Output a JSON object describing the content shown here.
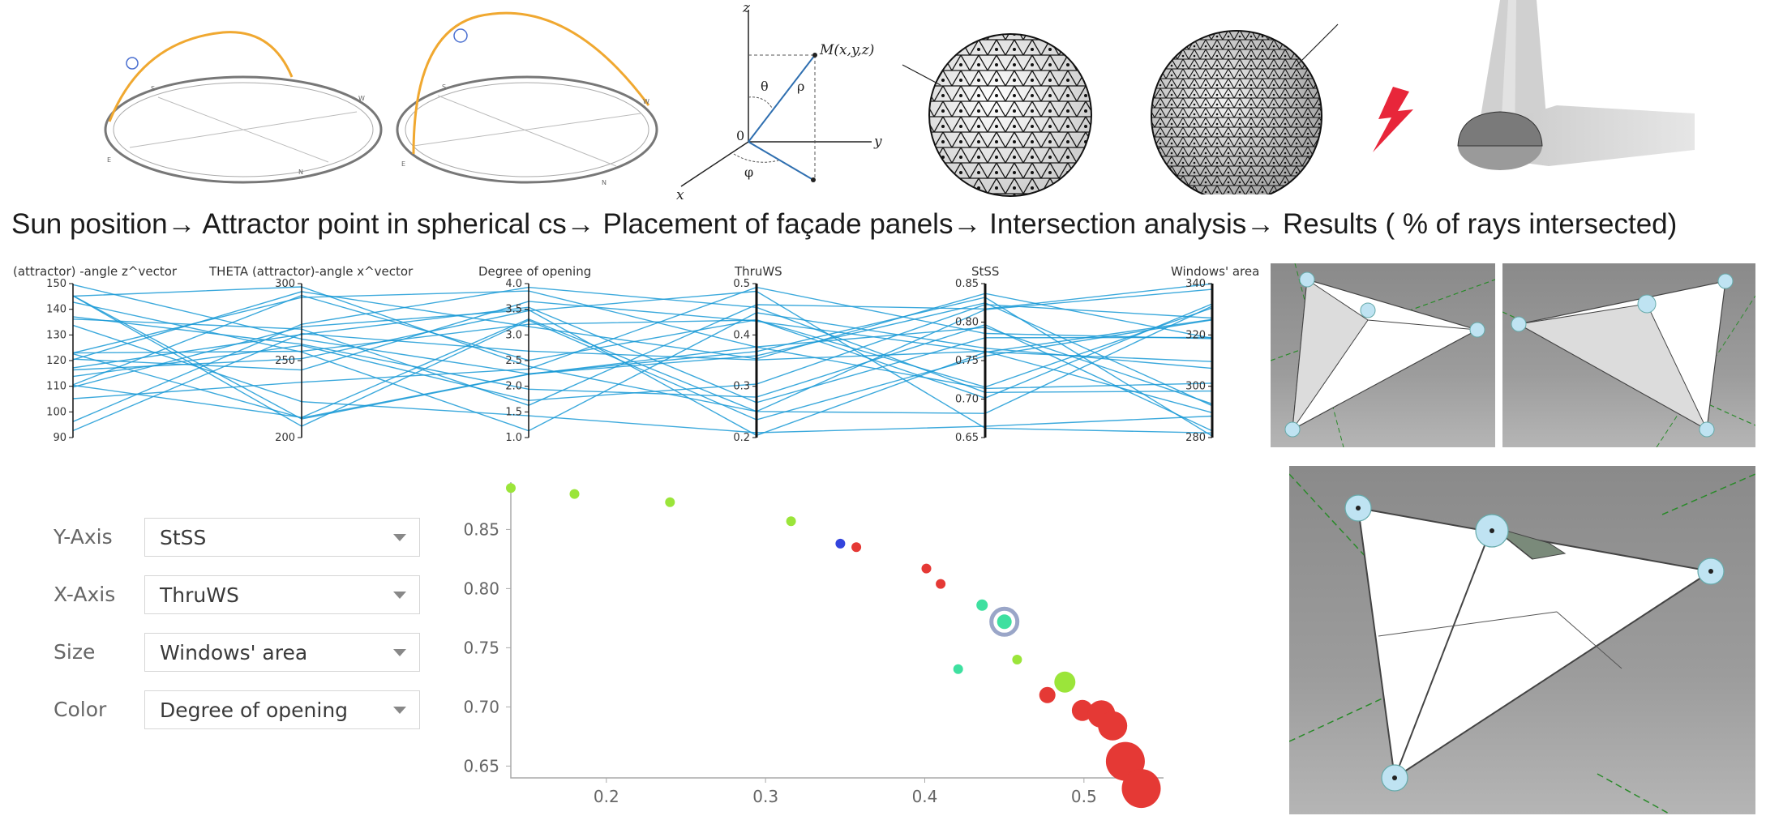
{
  "flow_caption": "Sun position→ Attractor point in spherical cs→ Placement of façade panels→ Intersection analysis→ Results ( % of rays intersected)",
  "sphere_diagram": {
    "axis_z": "z",
    "axis_y": "y",
    "axis_x": "x",
    "origin": "0",
    "point": "M(x,y,z)",
    "theta": "θ",
    "rho": "ρ",
    "phi": "φ"
  },
  "parallel_coords": {
    "axes": [
      {
        "label": "(attractor) -angle z^vector",
        "ticks": [
          "150",
          "140",
          "130",
          "120",
          "110",
          "100",
          "90"
        ]
      },
      {
        "label": "THETA (attractor)-angle x^vector",
        "ticks": [
          "300",
          "250",
          "200"
        ]
      },
      {
        "label": "Degree of opening",
        "ticks": [
          "4.0",
          "3.5",
          "3.0",
          "2.5",
          "2.0",
          "1.5",
          "1.0"
        ]
      },
      {
        "label": "ThruWS",
        "ticks": [
          "0.5",
          "0.4",
          "0.3",
          "0.2"
        ]
      },
      {
        "label": "StSS",
        "ticks": [
          "0.85",
          "0.80",
          "0.75",
          "0.70",
          "0.65"
        ]
      },
      {
        "label": "Windows' area",
        "ticks": [
          "340",
          "320",
          "300",
          "280"
        ]
      }
    ]
  },
  "controls": {
    "y_axis": {
      "label": "Y-Axis",
      "value": "StSS"
    },
    "x_axis": {
      "label": "X-Axis",
      "value": "ThruWS"
    },
    "size": {
      "label": "Size",
      "value": "Windows' area"
    },
    "color": {
      "label": "Color",
      "value": "Degree of opening"
    }
  },
  "colors": {
    "line": "#1a9ad6",
    "green": "#9be53a",
    "red": "#e53935",
    "teal": "#3ee0a0",
    "blue": "#3344dd",
    "sun_arc": "#f0a830"
  },
  "chart_data": {
    "type": "scatter",
    "xlabel": "",
    "ylabel": "",
    "xlim": [
      0.14,
      0.55
    ],
    "ylim": [
      0.64,
      0.89
    ],
    "xticks": [
      "0.2",
      "0.3",
      "0.4",
      "0.5"
    ],
    "yticks": [
      "0.85",
      "0.80",
      "0.75",
      "0.70",
      "0.65"
    ],
    "points": [
      {
        "x": 0.14,
        "y": 0.885,
        "c": "green",
        "s": 6
      },
      {
        "x": 0.18,
        "y": 0.88,
        "c": "green",
        "s": 6
      },
      {
        "x": 0.24,
        "y": 0.873,
        "c": "green",
        "s": 6
      },
      {
        "x": 0.316,
        "y": 0.857,
        "c": "green",
        "s": 6
      },
      {
        "x": 0.347,
        "y": 0.838,
        "c": "blue",
        "s": 6
      },
      {
        "x": 0.357,
        "y": 0.835,
        "c": "red",
        "s": 6
      },
      {
        "x": 0.401,
        "y": 0.817,
        "c": "red",
        "s": 6
      },
      {
        "x": 0.41,
        "y": 0.804,
        "c": "red",
        "s": 6
      },
      {
        "x": 0.436,
        "y": 0.786,
        "c": "teal",
        "s": 7
      },
      {
        "x": 0.45,
        "y": 0.772,
        "c": "teal",
        "s": 9,
        "sel": true
      },
      {
        "x": 0.421,
        "y": 0.732,
        "c": "teal",
        "s": 6
      },
      {
        "x": 0.458,
        "y": 0.74,
        "c": "green",
        "s": 6
      },
      {
        "x": 0.488,
        "y": 0.721,
        "c": "green",
        "s": 13
      },
      {
        "x": 0.477,
        "y": 0.71,
        "c": "red",
        "s": 10
      },
      {
        "x": 0.499,
        "y": 0.697,
        "c": "red",
        "s": 13
      },
      {
        "x": 0.511,
        "y": 0.694,
        "c": "red",
        "s": 17
      },
      {
        "x": 0.518,
        "y": 0.684,
        "c": "red",
        "s": 18
      },
      {
        "x": 0.526,
        "y": 0.654,
        "c": "red",
        "s": 24
      },
      {
        "x": 0.536,
        "y": 0.631,
        "c": "red",
        "s": 24
      }
    ]
  }
}
